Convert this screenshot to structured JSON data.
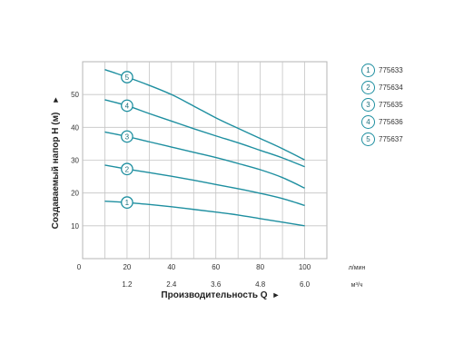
{
  "chart_data": {
    "type": "line",
    "ylabel": "Создаваемый напор H (м)",
    "ylabel_arrow": "►",
    "xlabel": "Производительность Q",
    "xlabel_arrow": "►",
    "x_unit_top": "л/мин",
    "x_unit_bottom": "м³/ч",
    "origin_label": "0",
    "xlim": [
      0,
      110
    ],
    "ylim": [
      0,
      60
    ],
    "grid": true,
    "y_ticks": [
      10,
      20,
      30,
      40,
      50
    ],
    "x_ticks_top": [
      {
        "value": 20,
        "label": "20"
      },
      {
        "value": 40,
        "label": "40"
      },
      {
        "value": 60,
        "label": "60"
      },
      {
        "value": 80,
        "label": "80"
      },
      {
        "value": 100,
        "label": "100"
      }
    ],
    "x_ticks_bottom": [
      {
        "value": 20,
        "label": "1.2"
      },
      {
        "value": 40,
        "label": "2.4"
      },
      {
        "value": 60,
        "label": "3.6"
      },
      {
        "value": 80,
        "label": "4.8"
      },
      {
        "value": 100,
        "label": "6.0"
      }
    ],
    "line_color": "#1e8fa0",
    "series": [
      {
        "marker": "1",
        "name": "775633",
        "marker_x": 20,
        "x": [
          10,
          20,
          30,
          40,
          50,
          60,
          70,
          80,
          90,
          100
        ],
        "y": [
          17.5,
          17.1,
          16.5,
          15.8,
          15.0,
          14.2,
          13.3,
          12.2,
          11.1,
          10.0
        ]
      },
      {
        "marker": "2",
        "name": "775634",
        "marker_x": 20,
        "x": [
          10,
          20,
          30,
          40,
          50,
          60,
          70,
          80,
          90,
          100
        ],
        "y": [
          28.5,
          27.3,
          26.2,
          25.1,
          23.9,
          22.6,
          21.3,
          19.9,
          18.3,
          16.2
        ]
      },
      {
        "marker": "3",
        "name": "775635",
        "marker_x": 20,
        "x": [
          10,
          20,
          30,
          40,
          50,
          60,
          70,
          80,
          90,
          100
        ],
        "y": [
          38.6,
          37.2,
          35.6,
          34.0,
          32.4,
          30.8,
          29.0,
          27.1,
          24.7,
          21.5
        ]
      },
      {
        "marker": "4",
        "name": "775636",
        "marker_x": 20,
        "x": [
          10,
          20,
          30,
          40,
          50,
          60,
          70,
          80,
          90,
          100
        ],
        "y": [
          48.4,
          46.6,
          44.2,
          41.9,
          39.6,
          37.4,
          35.3,
          33.0,
          30.7,
          28.0
        ]
      },
      {
        "marker": "5",
        "name": "775637",
        "marker_x": 20,
        "x": [
          10,
          20,
          30,
          40,
          50,
          60,
          70,
          80,
          90,
          100
        ],
        "y": [
          57.6,
          55.3,
          52.8,
          50.0,
          46.5,
          42.9,
          39.7,
          36.6,
          33.5,
          30.1
        ]
      }
    ]
  }
}
